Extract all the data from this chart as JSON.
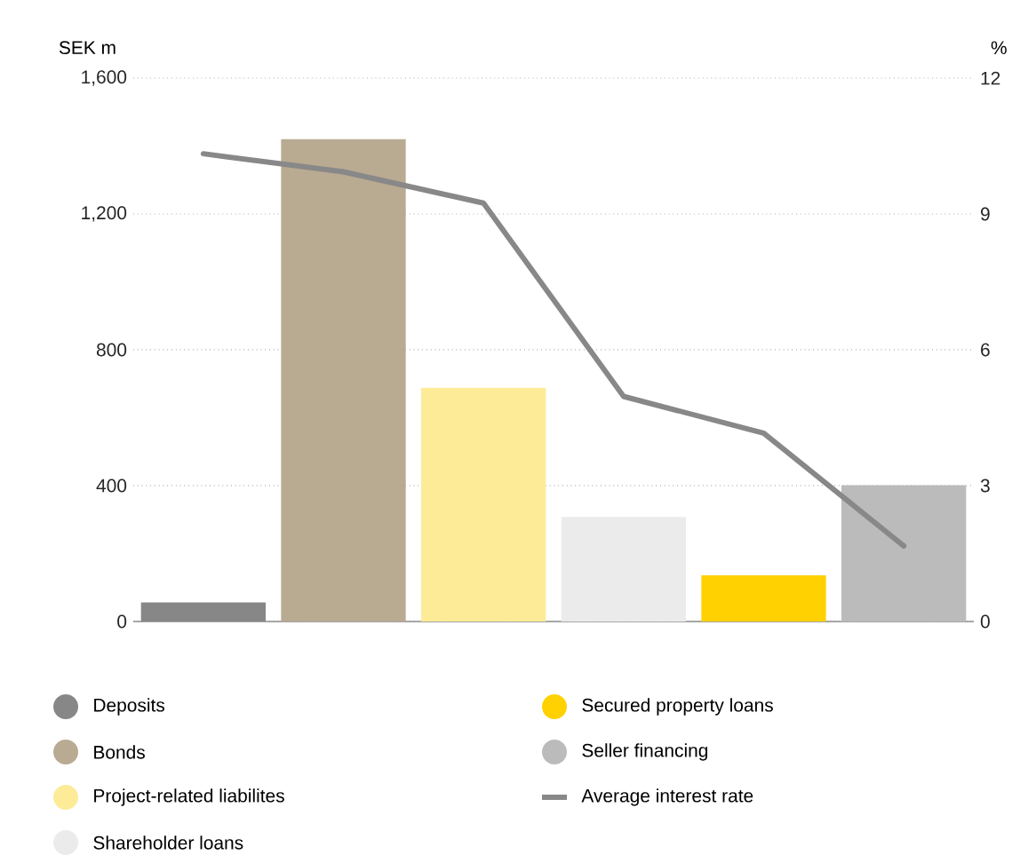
{
  "chart_data": {
    "type": "bar",
    "ylabel": "SEK m",
    "y2label": "%",
    "categories": [
      null,
      null,
      null,
      null,
      null,
      null
    ],
    "series": [
      {
        "name": "Deposits",
        "color": "#878787",
        "values": [
          56,
          null,
          null,
          null,
          null,
          null
        ]
      },
      {
        "name": "Bonds",
        "color": "#b9aa92",
        "values": [
          null,
          1420,
          null,
          null,
          null,
          null
        ]
      },
      {
        "name": "Project-related liabilites",
        "color": "#fdeb98",
        "values": [
          null,
          null,
          688,
          null,
          null,
          null
        ]
      },
      {
        "name": "Shareholder loans",
        "color": "#ebebeb",
        "values": [
          null,
          null,
          null,
          308,
          null,
          null
        ]
      },
      {
        "name": "Secured property loans",
        "color": "#ffd100",
        "values": [
          null,
          null,
          null,
          null,
          136,
          null
        ]
      },
      {
        "name": "Seller financing",
        "color": "#babbba",
        "values": [
          null,
          null,
          null,
          null,
          null,
          401
        ]
      },
      {
        "name": "Average interest rate",
        "type": "line",
        "axis": "y2",
        "color": "#888888",
        "values": [
          10.33,
          9.93,
          9.24,
          4.97,
          4.16,
          1.67
        ]
      }
    ],
    "ylim": [
      0,
      1600
    ],
    "yticks": [
      {
        "value": 0,
        "label": "0"
      },
      {
        "value": 400,
        "label": "400"
      },
      {
        "value": 800,
        "label": "800"
      },
      {
        "value": 1200,
        "label": "1,200"
      },
      {
        "value": 1600,
        "label": "1,600"
      }
    ],
    "y2lim": [
      0,
      12
    ],
    "y2ticks": [
      0,
      3,
      6,
      9,
      12
    ],
    "grid": "y",
    "legend": "bottom"
  }
}
